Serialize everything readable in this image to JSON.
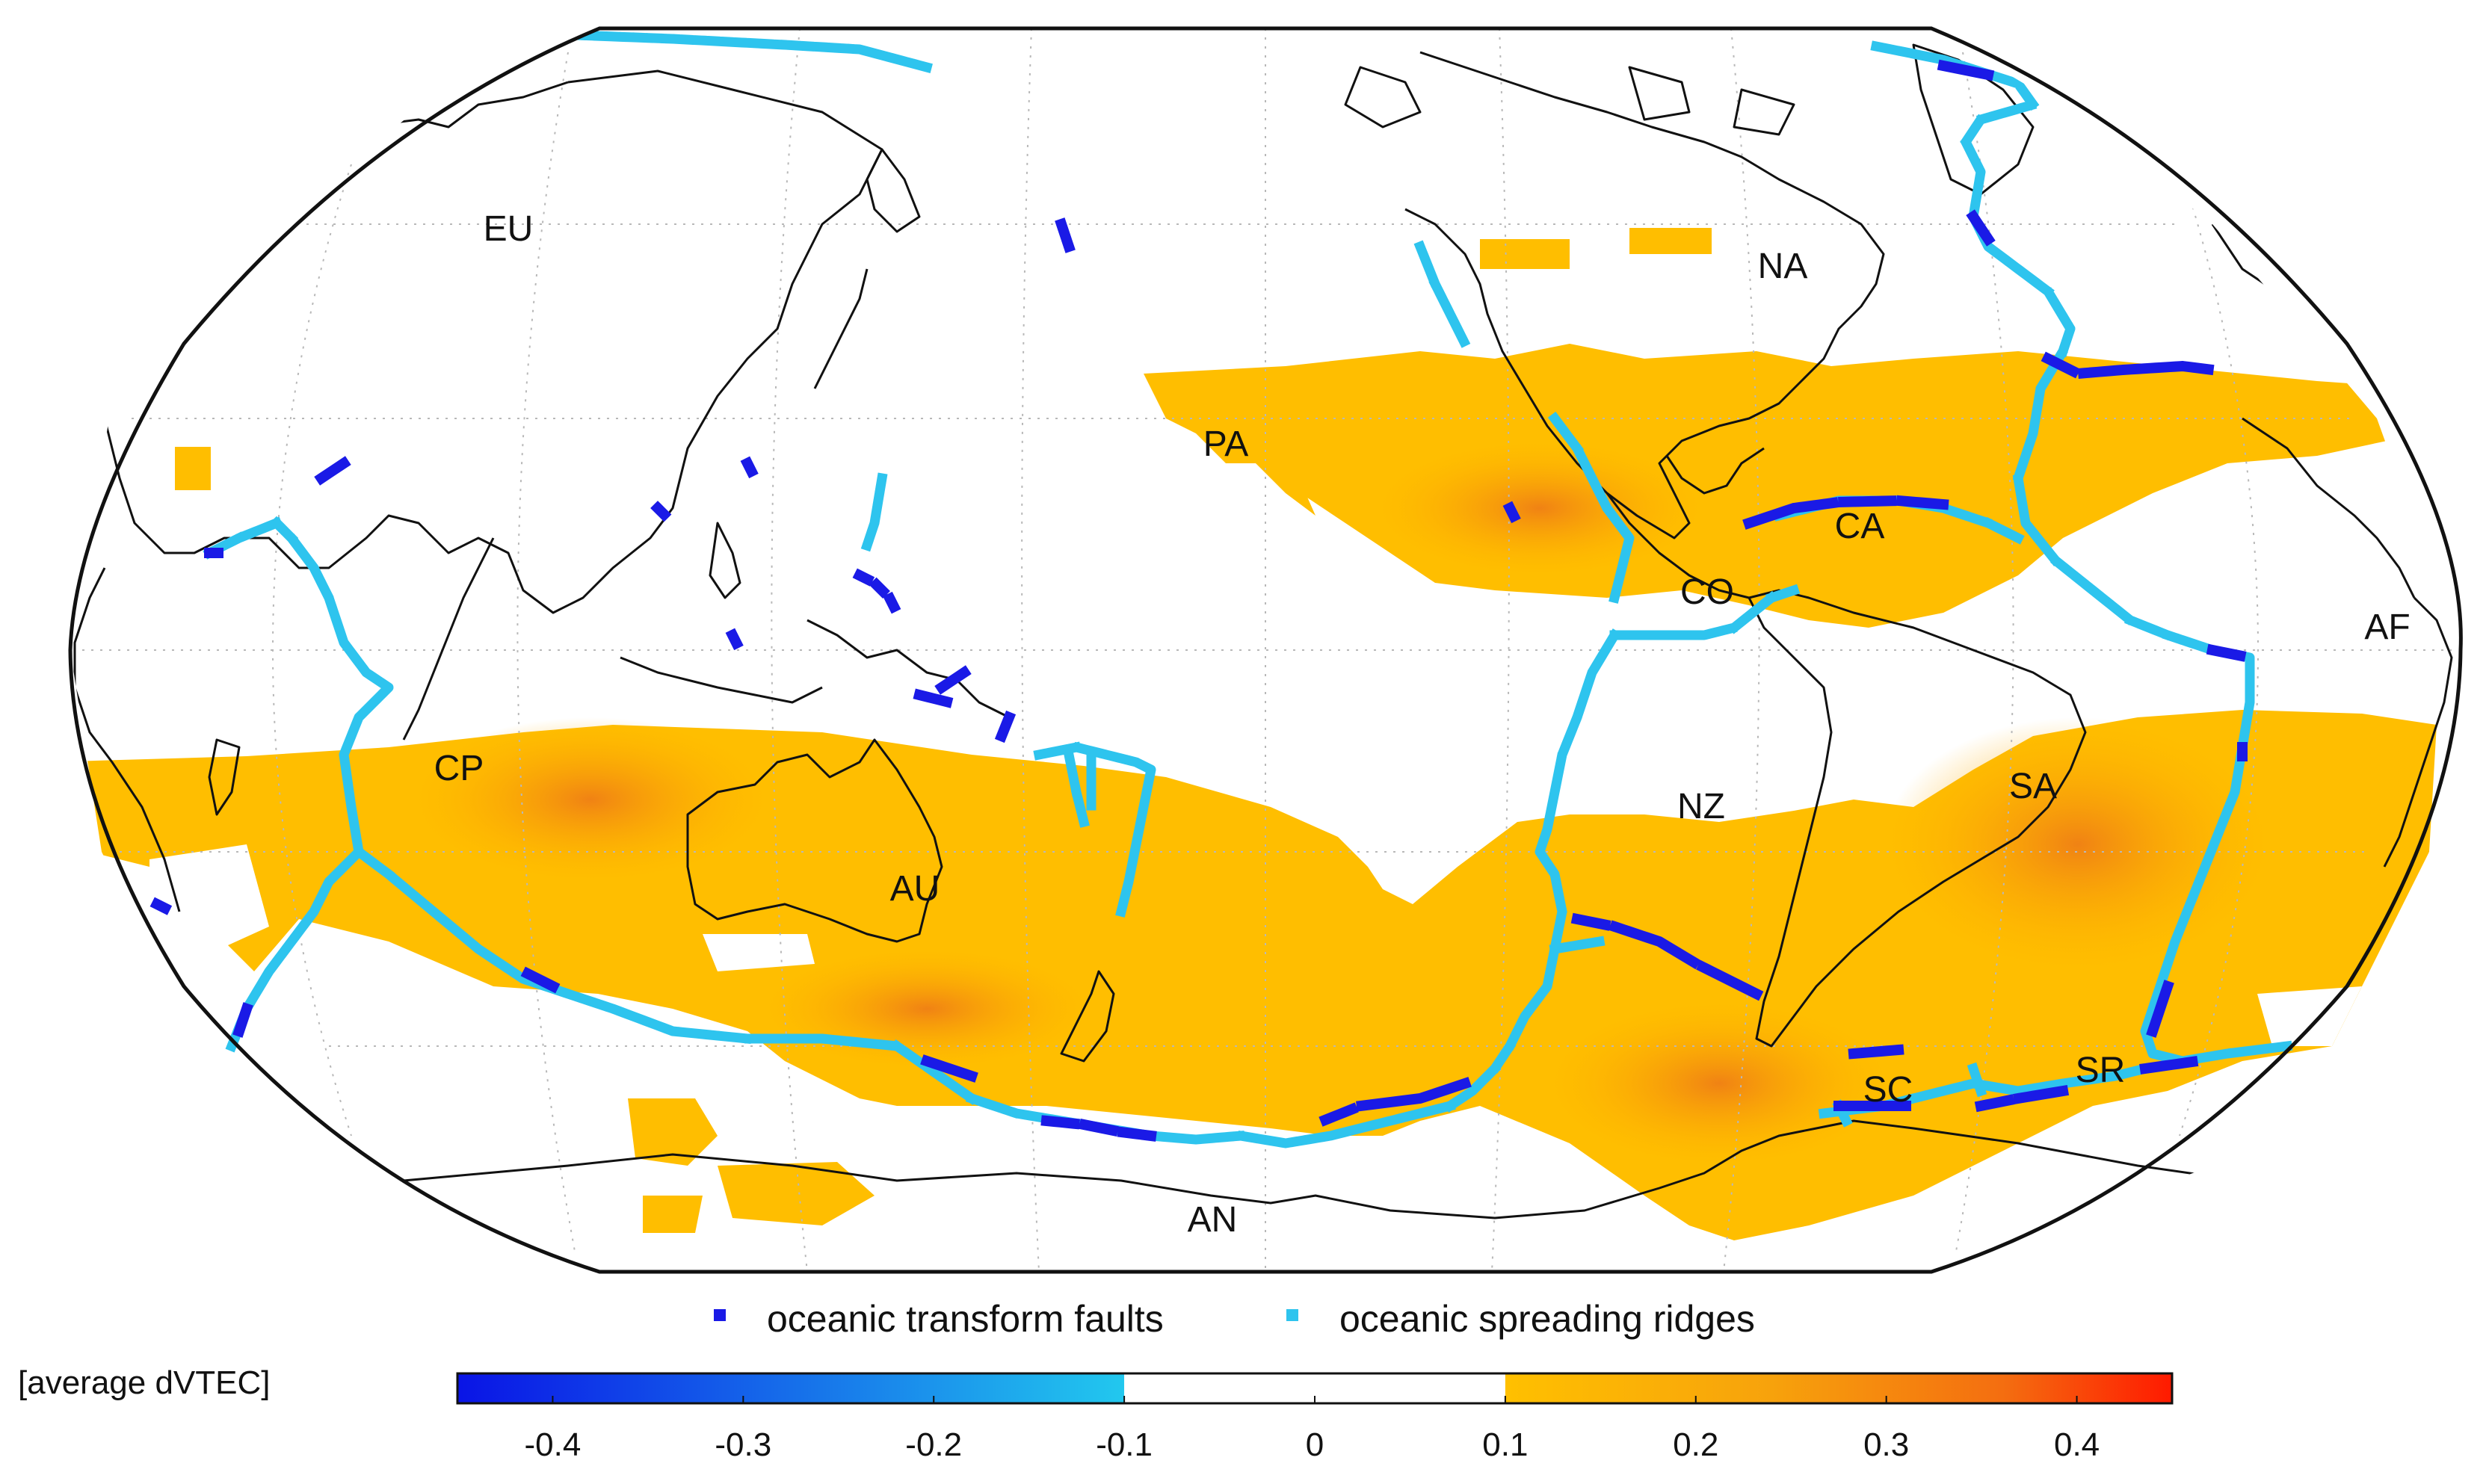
{
  "map": {
    "projection": "Robinson",
    "center": "Pacific",
    "plate_labels": [
      {
        "id": "EU",
        "text": "EU"
      },
      {
        "id": "NA",
        "text": "NA"
      },
      {
        "id": "PA",
        "text": "PA"
      },
      {
        "id": "CA",
        "text": "CA"
      },
      {
        "id": "CO",
        "text": "CO"
      },
      {
        "id": "AF",
        "text": "AF"
      },
      {
        "id": "CP",
        "text": "CP"
      },
      {
        "id": "AU",
        "text": "AU"
      },
      {
        "id": "NZ",
        "text": "NZ"
      },
      {
        "id": "SA",
        "text": "SA"
      },
      {
        "id": "SC",
        "text": "SC"
      },
      {
        "id": "SR",
        "text": "SR"
      },
      {
        "id": "AN",
        "text": "AN"
      }
    ]
  },
  "legend": {
    "transform_label": "oceanic transform faults",
    "ridge_label": "oceanic spreading ridges",
    "transform_color": "#1a1ae6",
    "ridge_color": "#2ec4ee"
  },
  "colorbar": {
    "label": "[average dVTEC]",
    "ticks": [
      "-0.4",
      "-0.3",
      "-0.2",
      "-0.1",
      "0",
      "0.1",
      "0.2",
      "0.3",
      "0.4"
    ],
    "range": [
      -0.45,
      0.45
    ],
    "white_band": [
      -0.1,
      0.1
    ],
    "colors": {
      "min": "#0a14e6",
      "neg_end": "#22c8ee",
      "pos_start": "#ffc000",
      "mid": "#f59a10",
      "max": "#ff1a00"
    }
  }
}
